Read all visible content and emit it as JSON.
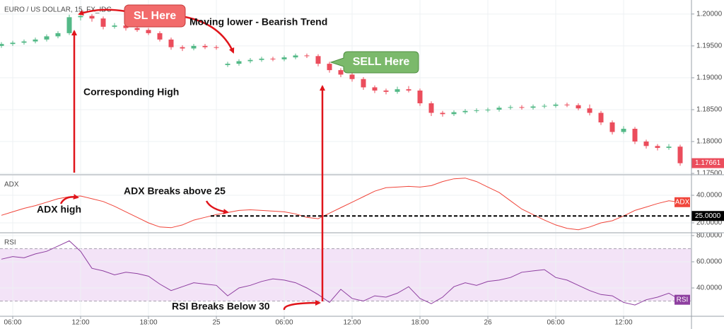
{
  "chart_data": [
    {
      "type": "candlestick",
      "title": "EURO / US DOLLAR, 15, FX_IDC",
      "x": [
        5,
        6,
        7,
        8,
        9,
        10,
        11,
        12,
        13,
        14,
        15,
        16,
        17,
        18,
        19,
        20,
        21,
        22,
        23,
        24,
        25,
        26,
        27,
        28,
        29,
        30,
        31,
        32,
        33,
        34,
        35,
        36,
        37,
        38,
        39,
        40,
        41,
        42,
        43,
        44,
        45,
        46,
        47,
        48,
        49,
        50,
        51,
        52,
        53,
        54,
        55,
        56,
        57,
        58,
        59,
        60,
        61,
        62,
        63,
        64,
        65
      ],
      "open": [
        1.195,
        1.1953,
        1.1955,
        1.1957,
        1.196,
        1.1965,
        1.197,
        1.1995,
        1.1997,
        1.1993,
        1.198,
        1.1982,
        1.1978,
        1.1975,
        1.197,
        1.196,
        1.1948,
        1.1946,
        1.195,
        1.1948,
        1.192,
        1.1922,
        1.1926,
        1.1928,
        1.193,
        1.1929,
        1.1932,
        1.1935,
        1.1934,
        1.1922,
        1.1912,
        1.1905,
        1.1898,
        1.1885,
        1.188,
        1.1878,
        1.1882,
        1.188,
        1.186,
        1.1845,
        1.1843,
        1.1846,
        1.1848,
        1.1849,
        1.185,
        1.1853,
        1.1854,
        1.1853,
        1.1855,
        1.1856,
        1.1858,
        1.1857,
        1.1852,
        1.1845,
        1.183,
        1.1815,
        1.182,
        1.18,
        1.1793,
        1.179,
        1.1792
      ],
      "high": [
        1.1956,
        1.1958,
        1.196,
        1.1963,
        1.1968,
        1.1973,
        1.1999,
        1.2001,
        1.2,
        1.1996,
        1.1986,
        1.1985,
        1.1981,
        1.1978,
        1.1973,
        1.1963,
        1.1951,
        1.1953,
        1.1953,
        1.1951,
        1.1925,
        1.1929,
        1.1931,
        1.1933,
        1.1933,
        1.1935,
        1.1938,
        1.1938,
        1.1937,
        1.1925,
        1.1915,
        1.1908,
        1.1901,
        1.1888,
        1.1883,
        1.1886,
        1.1887,
        1.1883,
        1.1863,
        1.1848,
        1.1849,
        1.1851,
        1.1852,
        1.1853,
        1.1856,
        1.1857,
        1.1857,
        1.1858,
        1.1859,
        1.1861,
        1.1861,
        1.186,
        1.1858,
        1.1848,
        1.1833,
        1.1824,
        1.1823,
        1.1803,
        1.1796,
        1.1796,
        1.1795
      ],
      "low": [
        1.1947,
        1.195,
        1.1952,
        1.1954,
        1.1957,
        1.1962,
        1.1967,
        1.199,
        1.1988,
        1.1976,
        1.1977,
        1.1974,
        1.1972,
        1.1967,
        1.1957,
        1.1944,
        1.1942,
        1.1943,
        1.1945,
        1.1944,
        1.1917,
        1.1919,
        1.1923,
        1.1925,
        1.1926,
        1.1926,
        1.1929,
        1.1931,
        1.1918,
        1.1908,
        1.1901,
        1.1894,
        1.1881,
        1.1876,
        1.1874,
        1.1875,
        1.1877,
        1.1856,
        1.184,
        1.1839,
        1.184,
        1.1843,
        1.1845,
        1.1846,
        1.1847,
        1.185,
        1.185,
        1.185,
        1.1852,
        1.1853,
        1.1854,
        1.1849,
        1.1841,
        1.1826,
        1.1811,
        1.1812,
        1.1796,
        1.1789,
        1.1786,
        1.1787,
        1.1762
      ],
      "close": [
        1.1953,
        1.1955,
        1.1957,
        1.196,
        1.1965,
        1.197,
        1.1995,
        1.1997,
        1.1993,
        1.198,
        1.1982,
        1.1978,
        1.1975,
        1.197,
        1.196,
        1.1948,
        1.1946,
        1.195,
        1.1948,
        1.1947,
        1.1922,
        1.1926,
        1.1928,
        1.193,
        1.1929,
        1.1932,
        1.1935,
        1.1934,
        1.1922,
        1.1912,
        1.1905,
        1.1898,
        1.1885,
        1.188,
        1.1878,
        1.1882,
        1.188,
        1.186,
        1.1845,
        1.1843,
        1.1846,
        1.1848,
        1.1849,
        1.185,
        1.1853,
        1.1854,
        1.1853,
        1.1855,
        1.1856,
        1.1858,
        1.1857,
        1.1852,
        1.1845,
        1.183,
        1.1815,
        1.182,
        1.18,
        1.1793,
        1.179,
        1.1792,
        1.1766
      ],
      "up_color": "#53b987",
      "down_color": "#eb4d5c",
      "last_price": 1.17661,
      "xlim": [
        4.875,
        66
      ],
      "ylim": [
        1.1749,
        1.2022
      ],
      "yticks": [
        {
          "value": 1.2,
          "label": "1.20000"
        },
        {
          "value": 1.195,
          "label": "1.19500"
        },
        {
          "value": 1.19,
          "label": "1.19000"
        },
        {
          "value": 1.185,
          "label": "1.18500"
        },
        {
          "value": 1.18,
          "label": "1.18000"
        },
        {
          "value": 1.175,
          "label": "1.17500"
        }
      ],
      "grid": true
    },
    {
      "type": "line",
      "title": "ADX",
      "x": [
        5,
        6,
        7,
        8,
        9,
        10,
        11,
        12,
        13,
        14,
        15,
        16,
        17,
        18,
        19,
        20,
        21,
        22,
        23,
        24,
        25,
        26,
        27,
        28,
        29,
        30,
        31,
        32,
        33,
        34,
        35,
        36,
        37,
        38,
        39,
        40,
        41,
        42,
        43,
        44,
        45,
        46,
        47,
        48,
        49,
        50,
        51,
        52,
        53,
        54,
        55,
        56,
        57,
        58,
        59,
        60,
        61,
        62,
        63,
        64,
        65
      ],
      "series": [
        {
          "name": "ADX",
          "color": "#f0453a",
          "values": [
            25.5,
            28,
            30.5,
            32.5,
            35,
            37.5,
            39,
            39.5,
            37.5,
            35.5,
            32,
            28,
            24,
            20,
            17,
            16.5,
            18.5,
            22,
            24,
            26,
            27.5,
            29,
            29.5,
            29,
            28.5,
            28,
            26.5,
            24,
            23,
            27,
            31,
            35,
            39,
            43,
            45.5,
            46,
            46.5,
            46,
            47,
            50,
            52,
            52.5,
            50,
            46,
            42,
            36,
            30,
            26,
            22,
            18.5,
            16,
            15,
            17,
            20,
            21.5,
            25,
            29,
            31.5,
            34,
            36,
            35
          ]
        }
      ],
      "level": {
        "value": 25,
        "label": "25.0000"
      },
      "xlim": [
        4.875,
        66
      ],
      "ylim": [
        13.3,
        54.4
      ],
      "yticks": [
        {
          "value": 40,
          "label": "40.0000"
        },
        {
          "value": 20,
          "label": "20.0000"
        }
      ],
      "grid": true
    },
    {
      "type": "line",
      "title": "RSI",
      "x": [
        5,
        6,
        7,
        8,
        9,
        10,
        11,
        12,
        13,
        14,
        15,
        16,
        17,
        18,
        19,
        20,
        21,
        22,
        23,
        24,
        25,
        26,
        27,
        28,
        29,
        30,
        31,
        32,
        33,
        34,
        35,
        36,
        37,
        38,
        39,
        40,
        41,
        42,
        43,
        44,
        45,
        46,
        47,
        48,
        49,
        50,
        51,
        52,
        53,
        54,
        55,
        56,
        57,
        58,
        59,
        60,
        61,
        62,
        63,
        64,
        65
      ],
      "series": [
        {
          "name": "RSI",
          "color": "#8e3fa0",
          "values": [
            62,
            64,
            63,
            66,
            68,
            72,
            76,
            68,
            55,
            53,
            50,
            52,
            51,
            49,
            43,
            38,
            41,
            44,
            43,
            42,
            34,
            40,
            42,
            45,
            47,
            46,
            44,
            40,
            35,
            29,
            39,
            32,
            30,
            34,
            33,
            36,
            41,
            32,
            28,
            33,
            41,
            44,
            42,
            45,
            46,
            48,
            52,
            53,
            54,
            48,
            46,
            42,
            38,
            35,
            34,
            29,
            27,
            31,
            33,
            36,
            31
          ]
        }
      ],
      "bands": [
        30,
        70
      ],
      "band_color": "#f3e3f7",
      "xlim": [
        4.875,
        66
      ],
      "ylim": [
        18.4,
        81.6
      ],
      "yticks": [
        {
          "value": 80,
          "label": "80.0000"
        },
        {
          "value": 60,
          "label": "60.0000"
        },
        {
          "value": 40,
          "label": "40.0000"
        }
      ],
      "xticks": [
        {
          "value": 6,
          "label": "06:00"
        },
        {
          "value": 12,
          "label": "12:00"
        },
        {
          "value": 18,
          "label": "18:00"
        },
        {
          "value": 24,
          "label": "25"
        },
        {
          "value": 30,
          "label": "06:00"
        },
        {
          "value": 36,
          "label": "12:00"
        },
        {
          "value": 42,
          "label": "18:00"
        },
        {
          "value": 48,
          "label": "26"
        },
        {
          "value": 54,
          "label": "06:00"
        },
        {
          "value": 60,
          "label": "12:00"
        }
      ],
      "grid": true
    }
  ],
  "annotations": [
    "SL Here",
    "Moving lower - Bearish Trend",
    "SELL Here",
    "Corresponding High",
    "ADX high",
    "ADX Breaks above 25",
    "RSI Breaks Below 30"
  ]
}
